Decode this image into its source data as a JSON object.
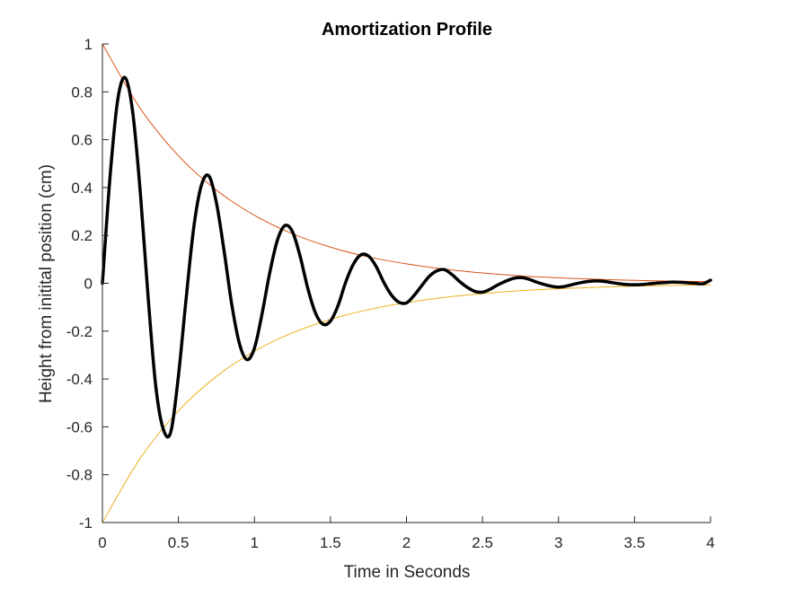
{
  "chart_data": {
    "type": "line",
    "title": "Amortization Profile",
    "xlabel": "Time in Seconds",
    "ylabel": "Height from initital position (cm)",
    "xlim": [
      0,
      4
    ],
    "ylim": [
      -1,
      1
    ],
    "xticks": [
      0,
      0.5,
      1,
      1.5,
      2,
      2.5,
      3,
      3.5,
      4
    ],
    "xtick_labels": [
      "0",
      "0.5",
      "1",
      "1.5",
      "2",
      "2.5",
      "3",
      "3.5",
      "4"
    ],
    "yticks": [
      -1,
      -0.8,
      -0.6,
      -0.4,
      -0.2,
      0,
      0.2,
      0.4,
      0.6,
      0.8,
      1
    ],
    "ytick_labels": [
      "-1",
      "-0.8",
      "-0.6",
      "-0.4",
      "-0.2",
      "0",
      "0.2",
      "0.4",
      "0.6",
      "0.8",
      "1"
    ],
    "grid": false,
    "legend": "none",
    "series": [
      {
        "color": "#000000",
        "line_width": 3.5,
        "x": [
          0,
          0.05,
          0.1,
          0.15,
          0.2,
          0.25,
          0.3,
          0.35,
          0.4,
          0.45,
          0.5,
          0.55,
          0.6,
          0.65,
          0.7,
          0.75,
          0.8,
          0.85,
          0.9,
          0.95,
          1,
          1.05,
          1.1,
          1.15,
          1.2,
          1.25,
          1.3,
          1.35,
          1.4,
          1.45,
          1.5,
          1.55,
          1.6,
          1.65,
          1.7,
          1.75,
          1.8,
          1.85,
          1.9,
          1.95,
          2,
          2.05,
          2.1,
          2.15,
          2.2,
          2.25,
          2.3,
          2.35,
          2.4,
          2.45,
          2.5,
          2.55,
          2.6,
          2.65,
          2.7,
          2.75,
          2.8,
          2.85,
          2.9,
          2.95,
          3,
          3.05,
          3.1,
          3.15,
          3.2,
          3.25,
          3.3,
          3.35,
          3.4,
          3.45,
          3.5,
          3.55,
          3.6,
          3.65,
          3.7,
          3.75,
          3.8,
          3.85,
          3.9,
          3.95,
          4
        ],
        "y": [
          0,
          0.443,
          0.763,
          0.859,
          0.712,
          0.374,
          -0.052,
          -0.425,
          -0.609,
          -0.621,
          -0.387,
          -0.068,
          0.229,
          0.407,
          0.449,
          0.336,
          0.137,
          -0.085,
          -0.249,
          -0.319,
          -0.271,
          -0.128,
          0.042,
          0.178,
          0.241,
          0.216,
          0.114,
          -0.019,
          -0.122,
          -0.171,
          -0.158,
          -0.093,
          0.004,
          0.079,
          0.119,
          0.114,
          0.071,
          0.005,
          -0.048,
          -0.079,
          -0.082,
          -0.051,
          -0.01,
          0.029,
          0.052,
          0.057,
          0.036,
          0.007,
          -0.017,
          -0.034,
          -0.037,
          -0.025,
          -0.007,
          0.008,
          0.02,
          0.024,
          0.018,
          0.006,
          -0.004,
          -0.012,
          -0.016,
          -0.012,
          -0.004,
          0.003,
          0.008,
          0.01,
          0.008,
          0.003,
          -0.002,
          -0.005,
          -0.006,
          -0.005,
          -0.002,
          0.001,
          0.003,
          0.005,
          0.004,
          0.002,
          0.0,
          -0.002,
          0.013
        ]
      },
      {
        "color": "#D95319",
        "line_width": 1,
        "x": [
          0,
          0.25,
          0.5,
          0.75,
          1,
          1.25,
          1.5,
          1.75,
          2,
          2.25,
          2.5,
          2.75,
          3,
          3.25,
          3.5,
          3.75,
          4
        ],
        "y": [
          1,
          0.73,
          0.533,
          0.389,
          0.284,
          0.207,
          0.151,
          0.11,
          0.081,
          0.059,
          0.043,
          0.031,
          0.023,
          0.017,
          0.012,
          0.009,
          0.007
        ]
      },
      {
        "color": "#EDB120",
        "line_width": 1,
        "x": [
          0,
          0.25,
          0.5,
          0.75,
          1,
          1.25,
          1.5,
          1.75,
          2,
          2.25,
          2.5,
          2.75,
          3,
          3.25,
          3.5,
          3.75,
          4
        ],
        "y": [
          -1,
          -0.73,
          -0.533,
          -0.389,
          -0.284,
          -0.207,
          -0.151,
          -0.11,
          -0.081,
          -0.059,
          -0.043,
          -0.031,
          -0.023,
          -0.017,
          -0.012,
          -0.009,
          -0.007
        ]
      }
    ]
  }
}
